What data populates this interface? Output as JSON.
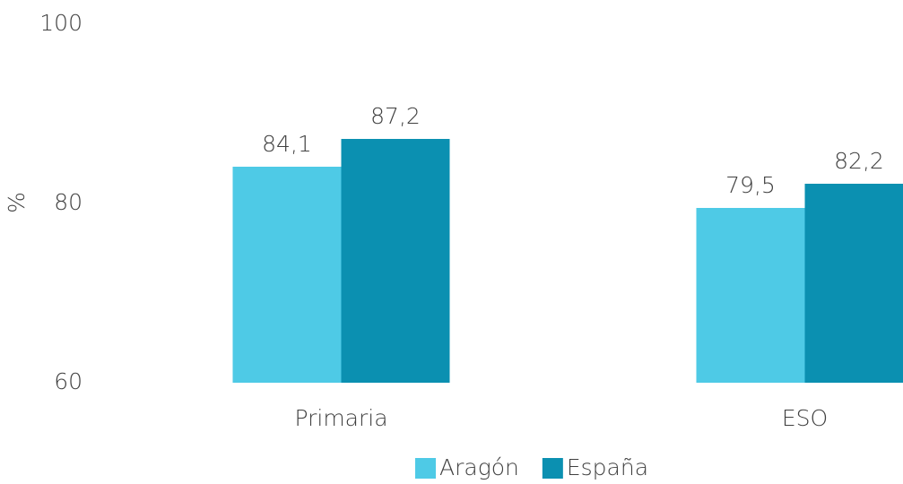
{
  "chart_data": {
    "type": "bar",
    "y_label": "%",
    "categories": [
      "Primaria",
      "ESO"
    ],
    "series": [
      {
        "name": "Aragón",
        "color": "#4ecae6",
        "values": [
          84.1,
          79.5
        ],
        "value_labels": [
          "84,1",
          "79,5"
        ]
      },
      {
        "name": "España",
        "color": "#0b90b1",
        "values": [
          87.2,
          82.2
        ],
        "value_labels": [
          "87,2",
          "82,2"
        ]
      }
    ],
    "ylim": [
      60,
      100
    ],
    "yticks": [
      60,
      80,
      100
    ],
    "grid": false,
    "legend": "bottom"
  }
}
